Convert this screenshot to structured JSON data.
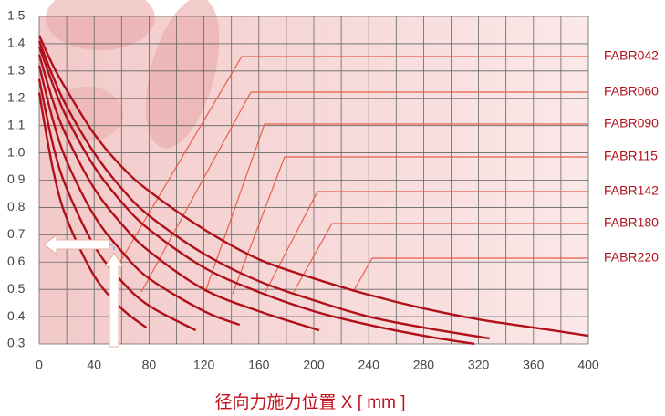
{
  "chart_data": {
    "type": "line",
    "x_label": "径向力施力位置 X [ mm ]",
    "xlim": [
      0,
      400
    ],
    "xticks": [
      0,
      40,
      80,
      120,
      160,
      200,
      240,
      280,
      320,
      360,
      400
    ],
    "xminor_ticks": [
      20,
      60,
      100,
      140,
      180,
      220,
      260,
      300,
      340,
      380
    ],
    "ylim": [
      0.3,
      1.5
    ],
    "yticks": [
      0.3,
      0.4,
      0.5,
      0.6,
      0.7,
      0.8,
      0.9,
      {
        "value": 1,
        "label": "1.0"
      },
      1.1,
      1.2,
      1.3,
      1.4,
      1.5
    ],
    "grid": true,
    "color": "#b0101a",
    "series": [
      {
        "name": "FABR042",
        "x": [
          0,
          10,
          20,
          40,
          60,
          78
        ],
        "values": [
          1.22,
          0.94,
          0.76,
          0.55,
          0.43,
          0.36
        ]
      },
      {
        "name": "FABR060",
        "x": [
          0,
          10,
          20,
          40,
          60,
          80,
          114
        ],
        "values": [
          1.27,
          1.03,
          0.87,
          0.66,
          0.53,
          0.44,
          0.35
        ]
      },
      {
        "name": "FABR090",
        "x": [
          0,
          10,
          20,
          40,
          60,
          80,
          120,
          146
        ],
        "values": [
          1.32,
          1.12,
          0.97,
          0.77,
          0.64,
          0.54,
          0.42,
          0.37
        ]
      },
      {
        "name": "FABR115",
        "x": [
          0,
          10,
          20,
          40,
          60,
          80,
          120,
          160,
          204
        ],
        "values": [
          1.36,
          1.19,
          1.06,
          0.87,
          0.74,
          0.64,
          0.5,
          0.42,
          0.35
        ]
      },
      {
        "name": "FABR142",
        "x": [
          0,
          10,
          20,
          40,
          60,
          80,
          120,
          160,
          200,
          240,
          280,
          317
        ],
        "values": [
          1.39,
          1.25,
          1.13,
          0.95,
          0.82,
          0.72,
          0.58,
          0.49,
          0.42,
          0.37,
          0.33,
          0.3
        ]
      },
      {
        "name": "FABR180",
        "x": [
          0,
          10,
          20,
          40,
          60,
          80,
          120,
          160,
          200,
          240,
          280,
          328
        ],
        "values": [
          1.41,
          1.28,
          1.17,
          1.0,
          0.87,
          0.77,
          0.63,
          0.53,
          0.46,
          0.4,
          0.36,
          0.32
        ]
      },
      {
        "name": "FABR220",
        "x": [
          0,
          10,
          20,
          40,
          60,
          80,
          120,
          160,
          200,
          240,
          280,
          320,
          360,
          400
        ],
        "values": [
          1.43,
          1.32,
          1.23,
          1.07,
          0.95,
          0.86,
          0.72,
          0.61,
          0.54,
          0.48,
          0.43,
          0.39,
          0.36,
          0.33
        ]
      }
    ]
  }
}
